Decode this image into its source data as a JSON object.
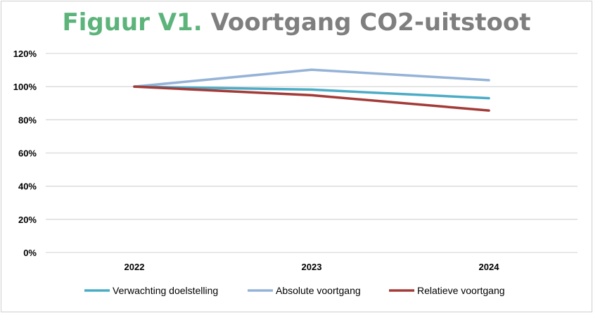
{
  "chart_data": {
    "type": "line",
    "title_prefix": "Figuur V1.",
    "title": "Voortgang CO2-uitstoot",
    "categories": [
      "2022",
      "2023",
      "2024"
    ],
    "series": [
      {
        "name": "Verwachting doelstelling",
        "color": "#4bacc6",
        "values": [
          100,
          98.2,
          93.0
        ]
      },
      {
        "name": "Absolute voortgang",
        "color": "#95b3d7",
        "values": [
          100,
          110.2,
          103.9
        ]
      },
      {
        "name": "Relatieve voortgang",
        "color": "#a33b38",
        "values": [
          100,
          94.8,
          85.6
        ]
      }
    ],
    "ylim": [
      0,
      120
    ],
    "yticks": [
      0,
      20,
      40,
      60,
      80,
      100,
      120
    ],
    "ytick_labels": [
      "0%",
      "20%",
      "40%",
      "60%",
      "80%",
      "100%",
      "120%"
    ],
    "grid": true,
    "legend_position": "bottom",
    "xlabel": "",
    "ylabel": ""
  }
}
